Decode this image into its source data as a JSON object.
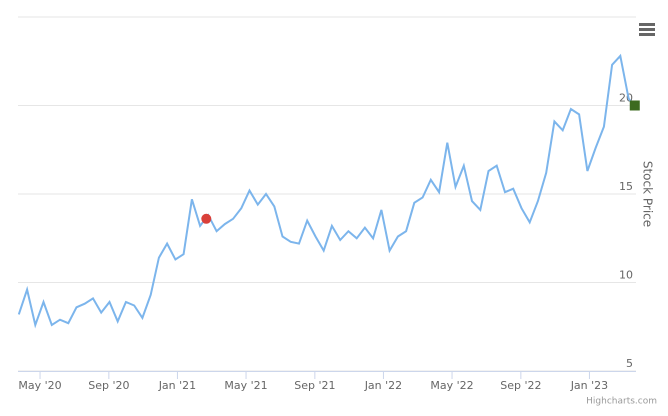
{
  "chart_data": {
    "type": "line",
    "y_axis_label": "Stock Price",
    "credits": "Highcharts.com",
    "xlim": [
      2020.226,
      2023.226
    ],
    "xticks": [
      {
        "value": 2020.333,
        "label": "May '20"
      },
      {
        "value": 2020.667,
        "label": "Sep '20"
      },
      {
        "value": 2021.0,
        "label": "Jan '21"
      },
      {
        "value": 2021.333,
        "label": "May '21"
      },
      {
        "value": 2021.667,
        "label": "Sep '21"
      },
      {
        "value": 2022.0,
        "label": "Jan '22"
      },
      {
        "value": 2022.333,
        "label": "May '22"
      },
      {
        "value": 2022.667,
        "label": "Sep '22"
      },
      {
        "value": 2023.0,
        "label": "Jan '23"
      }
    ],
    "ylim": [
      5,
      25
    ],
    "yticks": [
      5,
      10,
      15,
      20
    ],
    "grid": true,
    "series": [
      {
        "color": "#7cb5ec",
        "x": [
          2020.23,
          2020.27,
          2020.31,
          2020.35,
          2020.39,
          2020.43,
          2020.47,
          2020.51,
          2020.55,
          2020.59,
          2020.63,
          2020.67,
          2020.71,
          2020.75,
          2020.79,
          2020.83,
          2020.87,
          2020.91,
          2020.95,
          2020.99,
          2021.03,
          2021.07,
          2021.11,
          2021.15,
          2021.19,
          2021.23,
          2021.27,
          2021.31,
          2021.35,
          2021.39,
          2021.43,
          2021.47,
          2021.51,
          2021.55,
          2021.59,
          2021.63,
          2021.67,
          2021.71,
          2021.75,
          2021.79,
          2021.83,
          2021.87,
          2021.91,
          2021.95,
          2021.99,
          2022.03,
          2022.07,
          2022.11,
          2022.15,
          2022.19,
          2022.23,
          2022.27,
          2022.31,
          2022.35,
          2022.39,
          2022.43,
          2022.47,
          2022.51,
          2022.55,
          2022.59,
          2022.63,
          2022.67,
          2022.71,
          2022.75,
          2022.79,
          2022.83,
          2022.87,
          2022.91,
          2022.95,
          2022.99,
          2023.03,
          2023.07,
          2023.11,
          2023.15,
          2023.19,
          2023.22
        ],
        "values": [
          8.2,
          9.6,
          7.6,
          8.9,
          7.6,
          7.9,
          7.7,
          8.6,
          8.8,
          9.1,
          8.3,
          8.9,
          7.8,
          8.9,
          8.7,
          8.0,
          9.3,
          11.4,
          12.2,
          11.3,
          11.6,
          14.7,
          13.2,
          13.8,
          12.9,
          13.3,
          13.6,
          14.2,
          15.2,
          14.4,
          15.0,
          14.3,
          12.6,
          12.3,
          12.2,
          13.5,
          12.6,
          11.8,
          13.2,
          12.4,
          12.9,
          12.5,
          13.1,
          12.5,
          14.1,
          11.8,
          12.6,
          12.9,
          14.5,
          14.8,
          15.8,
          15.1,
          17.9,
          15.4,
          16.6,
          14.6,
          14.1,
          16.3,
          16.6,
          15.1,
          15.3,
          14.2,
          13.4,
          14.6,
          16.2,
          19.1,
          18.6,
          19.8,
          19.5,
          16.3,
          17.6,
          18.8,
          22.3,
          22.8,
          20.4,
          19.9
        ]
      }
    ],
    "markers": [
      {
        "x": 2021.14,
        "value": 13.6,
        "color": "#d9403a",
        "shape": "circle"
      },
      {
        "x": 2023.22,
        "value": 20,
        "color": "#3d6b1f",
        "shape": "square"
      }
    ]
  }
}
